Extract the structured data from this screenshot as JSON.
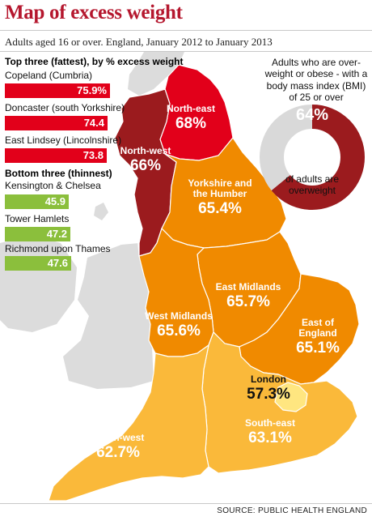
{
  "title": "Map of excess weight",
  "subtitle": "Adults aged 16 or over. England, January 2012 to January 2013",
  "top_three": {
    "heading": "Top three (fattest), by % excess weight",
    "items": [
      {
        "name": "Copeland (Cumbria)",
        "value": "75.9%"
      },
      {
        "name": "Doncaster (south Yorkshire)",
        "value": "74.4"
      },
      {
        "name": "East Lindsey (Lincolnshire)",
        "value": "73.8"
      }
    ]
  },
  "bottom_three": {
    "heading": "Bottom three (thinnest)",
    "items": [
      {
        "name": "Kensington & Chelsea",
        "value": "45.9"
      },
      {
        "name": "Tower Hamlets",
        "value": "47.2"
      },
      {
        "name": "Richmond upon Thames",
        "value": "47.6"
      }
    ]
  },
  "regions": [
    {
      "name": "North-east",
      "value": "68%"
    },
    {
      "name": "North-west",
      "value": "66%"
    },
    {
      "name": "Yorkshire and the Humber",
      "value": "65.4%"
    },
    {
      "name": "East Midlands",
      "value": "65.7%"
    },
    {
      "name": "West Midlands",
      "value": "65.6%"
    },
    {
      "name": "East of England",
      "value": "65.1%"
    },
    {
      "name": "London",
      "value": "57.3%"
    },
    {
      "name": "South-east",
      "value": "63.1%"
    },
    {
      "name": "South-west",
      "value": "62.7%"
    }
  ],
  "donut": {
    "note": "Adults who are over-weight or obese - with a body mass index (BMI) of 25 or over",
    "percent": "64%",
    "fraction": 0.64,
    "caption": "of adults are overweight"
  },
  "source": "SOURCE: PUBLIC HEALTH ENGLAND",
  "colors": {
    "title": "#b5172e",
    "top_bar": "#e2001a",
    "bottom_bar": "#8bbf3c",
    "north_east": "#e2001a",
    "north_west": "#9b1b1e",
    "yorkshire": "#f08a00",
    "east_midlands": "#f08a00",
    "west_midlands": "#f08a00",
    "east_of_england": "#f08a00",
    "london": "#ffe680",
    "south_east": "#fab93a",
    "south_west": "#fab93a",
    "donut_main": "#9b1b1e",
    "donut_rest": "#d9d9d9",
    "land_background": "#dcdcdc"
  }
}
